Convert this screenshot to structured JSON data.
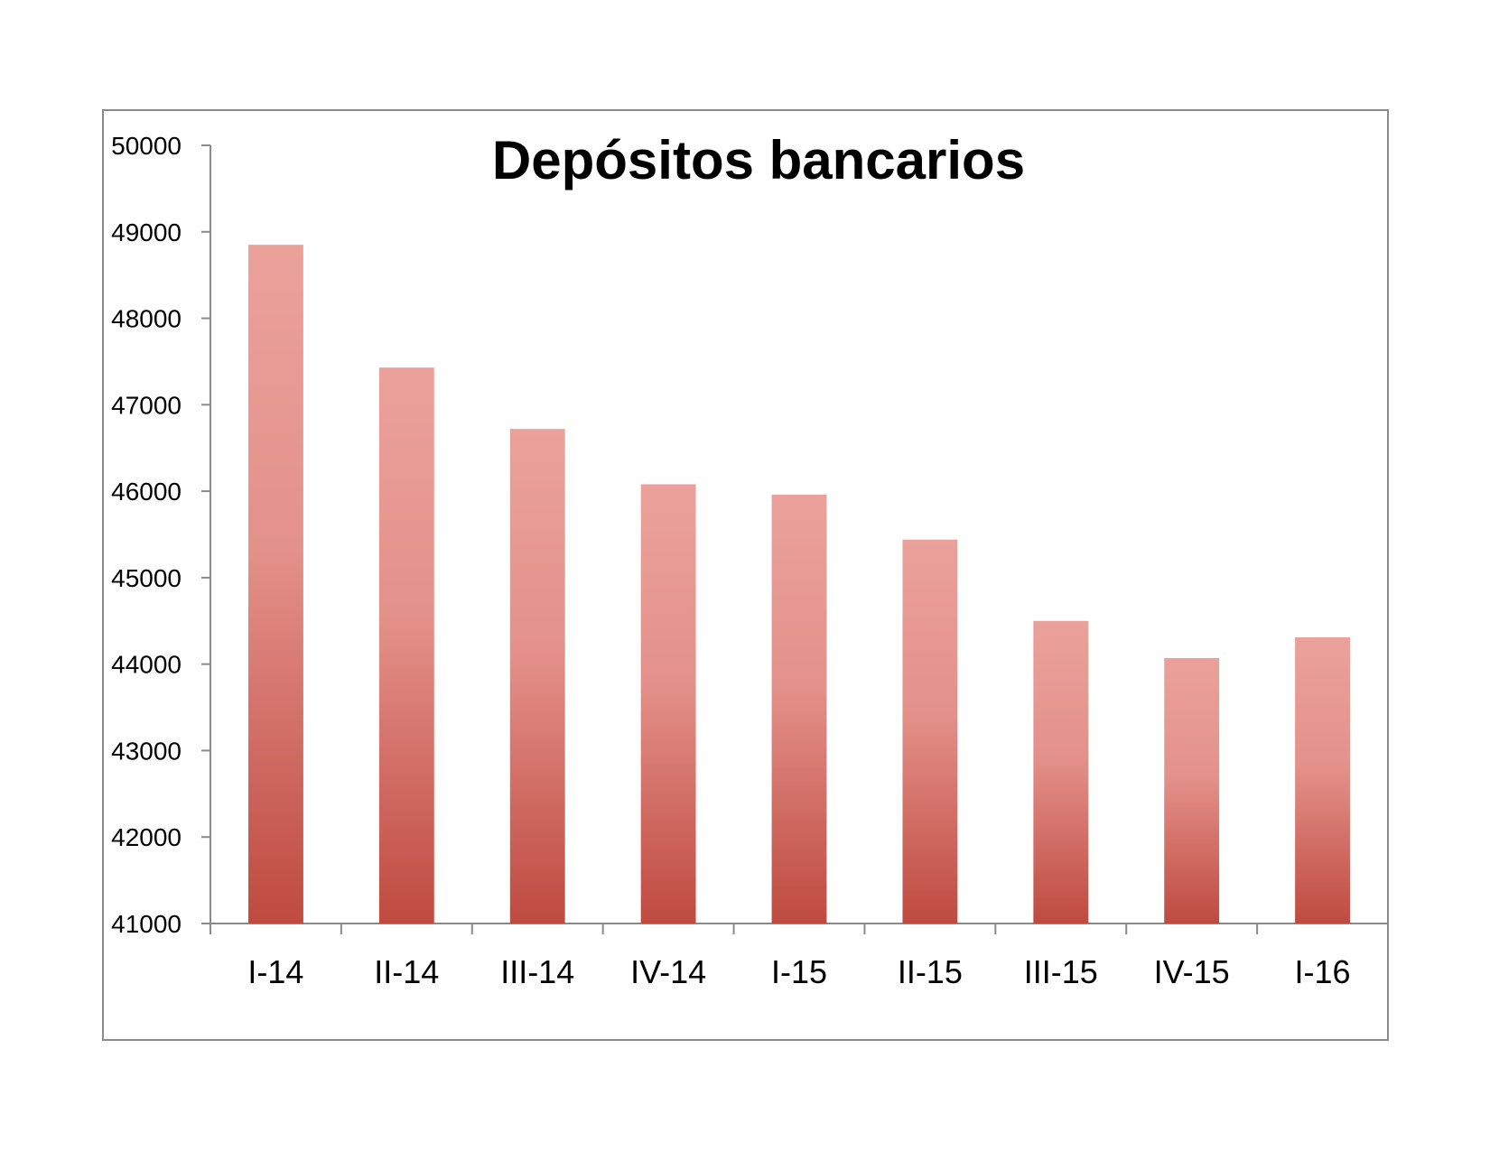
{
  "chart_data": {
    "type": "bar",
    "title": "Depósitos bancarios",
    "xlabel": "",
    "ylabel": "",
    "categories": [
      "I-14",
      "II-14",
      "III-14",
      "IV-14",
      "I-15",
      "II-15",
      "III-15",
      "IV-15",
      "I-16"
    ],
    "values": [
      48850,
      47430,
      46720,
      46080,
      45960,
      45440,
      44500,
      44070,
      44310
    ],
    "ylim": [
      41000,
      50000
    ],
    "yticks": [
      "41000",
      "42000",
      "43000",
      "44000",
      "45000",
      "46000",
      "47000",
      "48000",
      "49000",
      "50000"
    ],
    "grid": false,
    "legend": "none",
    "colors": {
      "bar_top": "#eba19b",
      "bar_bottom": "#bf4a40",
      "axis": "#8a8a8a",
      "frame": "#8a8a8a"
    }
  }
}
